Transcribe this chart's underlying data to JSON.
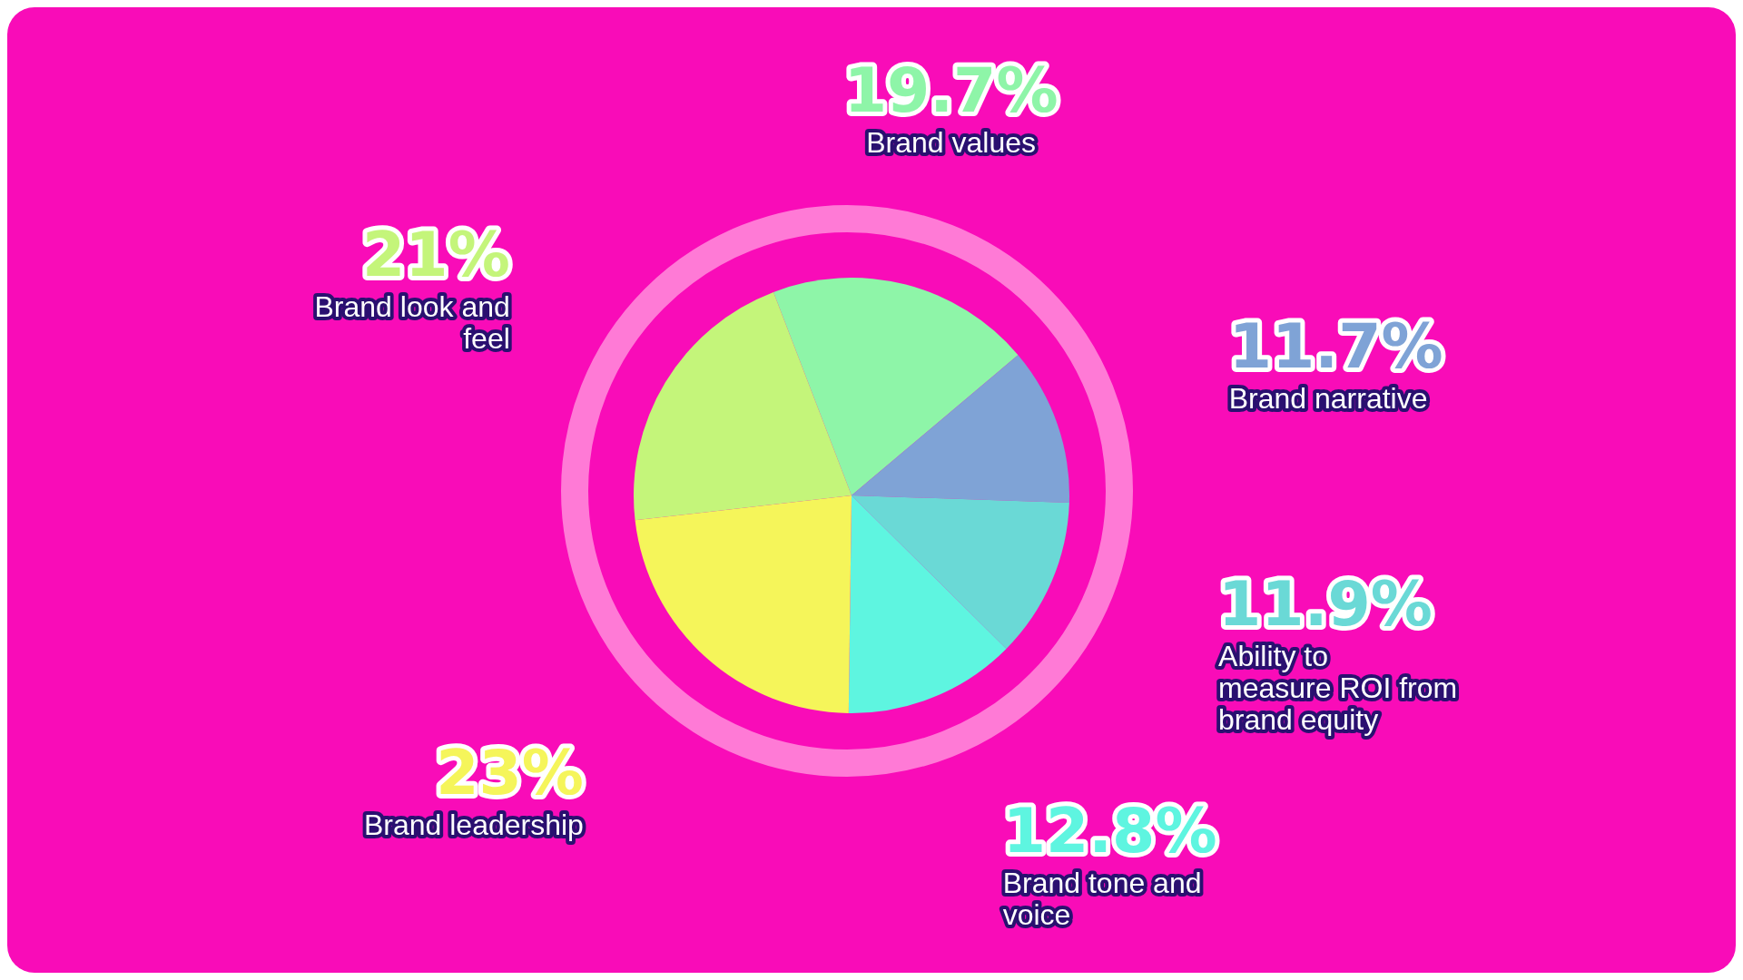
{
  "chart_data": {
    "type": "pie",
    "categories": [
      "Brand values",
      "Brand narrative",
      "Ability to measure ROI from brand equity",
      "Brand tone and voice",
      "Brand leadership",
      "Brand look and feel"
    ],
    "values": [
      19.7,
      11.7,
      11.9,
      12.8,
      23,
      21
    ],
    "colors": [
      "#8ef5a8",
      "#7fa3d6",
      "#6ad9d6",
      "#5ef5e0",
      "#f5f55a",
      "#c4f57a"
    ],
    "value_labels": [
      "19.7%",
      "11.7%",
      "11.9%",
      "12.8%",
      "23%",
      "21%"
    ]
  }
}
